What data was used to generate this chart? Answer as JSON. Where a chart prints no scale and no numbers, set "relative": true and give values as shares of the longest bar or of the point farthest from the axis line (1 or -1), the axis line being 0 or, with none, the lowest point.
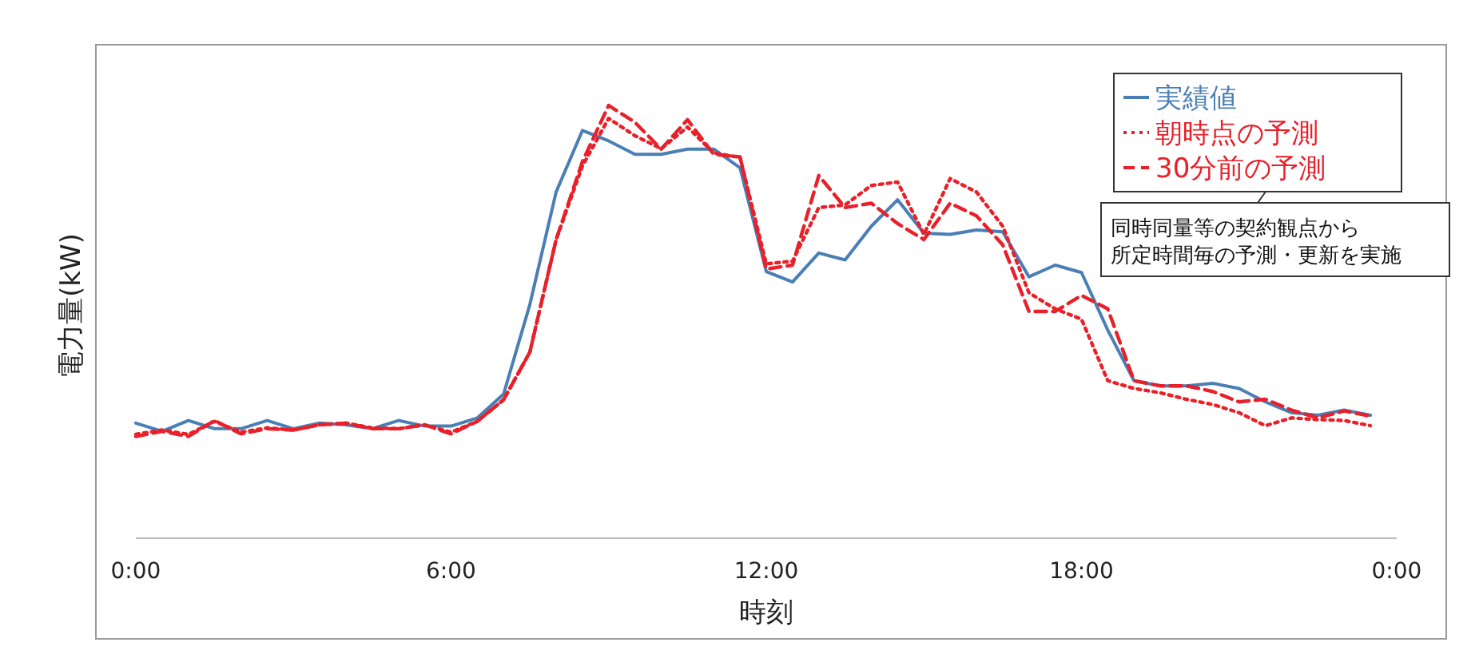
{
  "chart_data": {
    "type": "line",
    "relative": true,
    "xlabel": "時刻",
    "ylabel": "電力量(kW)",
    "xlim": [
      0,
      24
    ],
    "xticks": [
      {
        "value": 0,
        "label": "0:00"
      },
      {
        "value": 6,
        "label": "6:00"
      },
      {
        "value": 12,
        "label": "12:00"
      },
      {
        "value": 18,
        "label": "18:00"
      },
      {
        "value": 24,
        "label": "0:00"
      }
    ],
    "legend": "top right",
    "marker": "none",
    "x": [
      0,
      0.5,
      1,
      1.5,
      2,
      2.5,
      3,
      3.5,
      4,
      4.5,
      5,
      5.5,
      6,
      6.5,
      7,
      7.5,
      8,
      8.5,
      9,
      9.5,
      10,
      10.5,
      11,
      11.5,
      12,
      12.5,
      13,
      13.5,
      14,
      14.5,
      15,
      15.5,
      16,
      16.5,
      17,
      17.5,
      18,
      18.5,
      19,
      19.5,
      20,
      20.5,
      21,
      21.5,
      22,
      22.5,
      23,
      23.5
    ],
    "series": [
      {
        "name": "実績値",
        "color": "#4a7fb5",
        "line_style": "solid",
        "values": [
          0.266,
          0.247,
          0.272,
          0.253,
          0.253,
          0.272,
          0.253,
          0.266,
          0.262,
          0.253,
          0.272,
          0.259,
          0.259,
          0.278,
          0.333,
          0.54,
          0.8,
          0.942,
          0.918,
          0.887,
          0.887,
          0.899,
          0.899,
          0.856,
          0.616,
          0.592,
          0.659,
          0.643,
          0.721,
          0.782,
          0.705,
          0.702,
          0.712,
          0.708,
          0.604,
          0.631,
          0.614,
          0.481,
          0.364,
          0.352,
          0.352,
          0.358,
          0.346,
          0.315,
          0.29,
          0.284,
          0.296,
          0.284
        ]
      },
      {
        "name": "朝時点の予測",
        "color": "#e8202a",
        "line_style": "dotted",
        "values": [
          0.24,
          0.25,
          0.24,
          0.27,
          0.245,
          0.255,
          0.25,
          0.262,
          0.266,
          0.255,
          0.253,
          0.262,
          0.245,
          0.27,
          0.32,
          0.43,
          0.69,
          0.86,
          0.97,
          0.93,
          0.9,
          0.95,
          0.89,
          0.88,
          0.634,
          0.64,
          0.764,
          0.77,
          0.815,
          0.823,
          0.702,
          0.831,
          0.8,
          0.721,
          0.567,
          0.53,
          0.506,
          0.364,
          0.346,
          0.336,
          0.321,
          0.309,
          0.29,
          0.26,
          0.278,
          0.274,
          0.272,
          0.26
        ]
      },
      {
        "name": "30分前の予測",
        "color": "#e8202a",
        "line_style": "dashed",
        "values": [
          0.235,
          0.247,
          0.235,
          0.272,
          0.241,
          0.253,
          0.25,
          0.262,
          0.266,
          0.253,
          0.253,
          0.262,
          0.241,
          0.27,
          0.32,
          0.43,
          0.69,
          0.87,
          1.0,
          0.961,
          0.899,
          0.967,
          0.887,
          0.881,
          0.622,
          0.631,
          0.838,
          0.764,
          0.774,
          0.727,
          0.69,
          0.774,
          0.745,
          0.678,
          0.524,
          0.524,
          0.561,
          0.53,
          0.364,
          0.352,
          0.352,
          0.339,
          0.315,
          0.321,
          0.296,
          0.278,
          0.294,
          0.282
        ]
      }
    ],
    "annotations": [
      "同時同量等の契約観点から",
      "所定時間毎の予測・更新を実施"
    ]
  }
}
